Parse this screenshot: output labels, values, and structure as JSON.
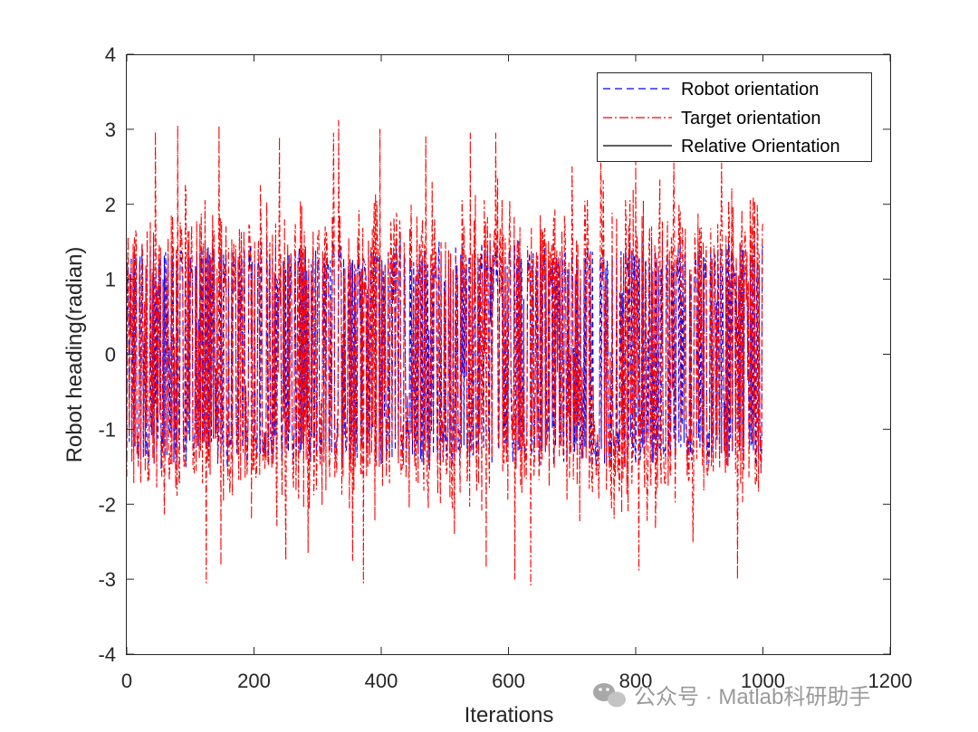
{
  "chart_data": {
    "type": "line",
    "title": "",
    "xlabel": "Iterations",
    "ylabel": "Robot heading(radian)",
    "xlim": [
      0,
      1200
    ],
    "ylim": [
      -4,
      4
    ],
    "xticks": [
      0,
      200,
      400,
      600,
      800,
      1000,
      1200
    ],
    "yticks": [
      -4,
      -3,
      -2,
      -1,
      0,
      1,
      2,
      3,
      4
    ],
    "x_tick_labels": [
      "0",
      "200",
      "400",
      "600",
      "800",
      "1000",
      "1200"
    ],
    "y_tick_labels": [
      "-4",
      "-3",
      "-2",
      "-1",
      "0",
      "1",
      "2",
      "3",
      "4"
    ],
    "grid": false,
    "legend_position": "top-right",
    "series": [
      {
        "name": "Robot orientation",
        "color": "#0000ff",
        "style": "dashed",
        "x_range": [
          0,
          1000
        ],
        "approx_min": -1.5,
        "approx_max": 1.6,
        "description_values": "oscillates rapidly between about -1.4 and 1.4 rad"
      },
      {
        "name": "Target orientation",
        "color": "#ff0000",
        "style": "dashdot",
        "x_range": [
          0,
          1000
        ],
        "approx_min": -3.07,
        "approx_max": 3.12,
        "spikes": [
          {
            "x": 45,
            "y": 2.97
          },
          {
            "x": 80,
            "y": 3.05
          },
          {
            "x": 125,
            "y": -3.05
          },
          {
            "x": 145,
            "y": 3.05
          },
          {
            "x": 148,
            "y": -2.82
          },
          {
            "x": 210,
            "y": 2.25
          },
          {
            "x": 240,
            "y": 2.9
          },
          {
            "x": 250,
            "y": -2.75
          },
          {
            "x": 285,
            "y": -2.65
          },
          {
            "x": 325,
            "y": 2.95
          },
          {
            "x": 333,
            "y": 3.12
          },
          {
            "x": 355,
            "y": -2.75
          },
          {
            "x": 372,
            "y": -3.05
          },
          {
            "x": 398,
            "y": 3.0
          },
          {
            "x": 470,
            "y": 2.9
          },
          {
            "x": 515,
            "y": -2.4
          },
          {
            "x": 540,
            "y": 2.95
          },
          {
            "x": 565,
            "y": -2.85
          },
          {
            "x": 580,
            "y": 2.95
          },
          {
            "x": 610,
            "y": -3.0
          },
          {
            "x": 635,
            "y": -3.08
          },
          {
            "x": 700,
            "y": 2.5
          },
          {
            "x": 745,
            "y": 2.55
          },
          {
            "x": 800,
            "y": 2.6
          },
          {
            "x": 805,
            "y": -2.88
          },
          {
            "x": 860,
            "y": 2.55
          },
          {
            "x": 890,
            "y": -2.5
          },
          {
            "x": 935,
            "y": 2.55
          },
          {
            "x": 960,
            "y": -3.0
          },
          {
            "x": 985,
            "y": 2.1
          }
        ]
      },
      {
        "name": "Relative Orientation",
        "color": "#000000",
        "style": "solid",
        "values": []
      }
    ]
  },
  "watermark": {
    "text": "公众号 · Matlab科研助手"
  }
}
